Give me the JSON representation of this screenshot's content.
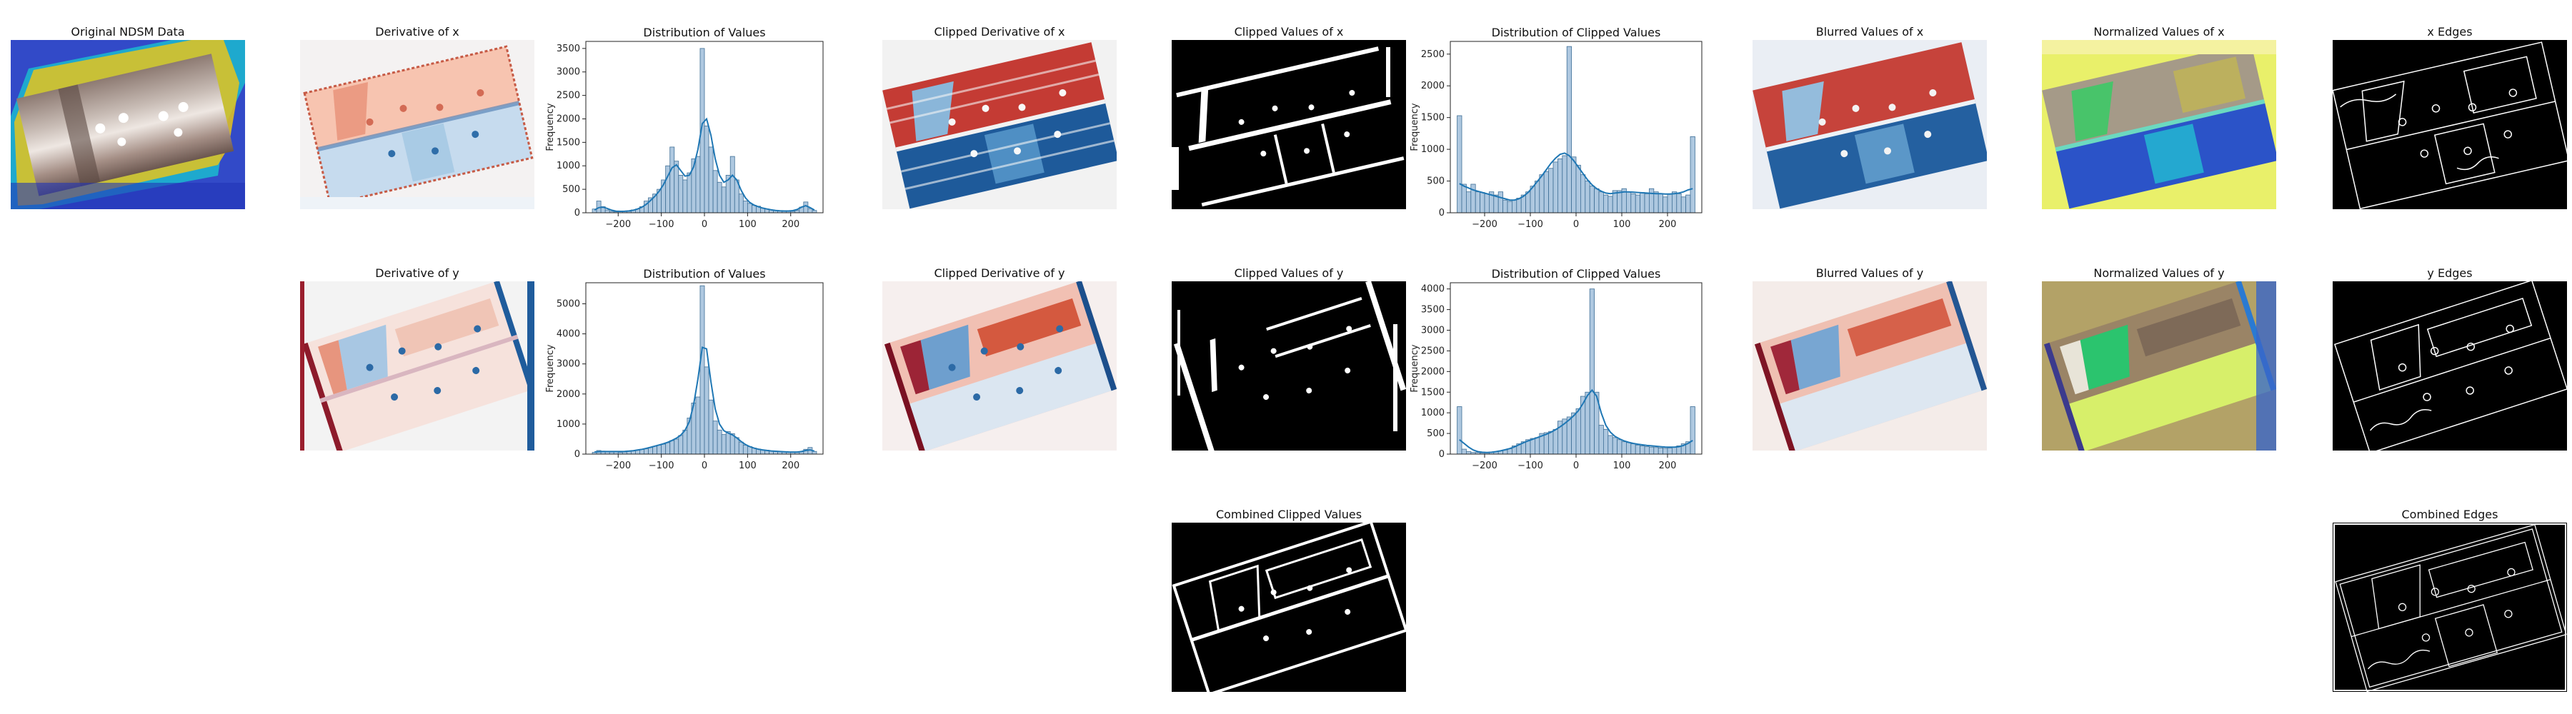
{
  "image_panels": {
    "ndsm": {
      "title": "Original NDSM Data"
    },
    "deriv_x": {
      "title": "Derivative of x"
    },
    "deriv_y": {
      "title": "Derivative of y"
    },
    "clip_deriv_x": {
      "title": "Clipped Derivative of x"
    },
    "clip_deriv_y": {
      "title": "Clipped Derivative of y"
    },
    "clip_vals_x": {
      "title": "Clipped Values  of x"
    },
    "clip_vals_y": {
      "title": "Clipped Values  of y"
    },
    "combined_clip": {
      "title": "Combined Clipped Values"
    },
    "blur_x": {
      "title": "Blurred Values of x"
    },
    "blur_y": {
      "title": "Blurred Values of y"
    },
    "norm_x": {
      "title": "Normalized Values of x"
    },
    "norm_y": {
      "title": "Normalized Values of y"
    },
    "edges_x": {
      "title": "x Edges"
    },
    "edges_y": {
      "title": "y Edges"
    },
    "combined_edges": {
      "title": "Combined Edges"
    }
  },
  "chart_data": [
    {
      "id": "hist1",
      "type": "bar",
      "title": "Distribution of Values",
      "xlabel": "",
      "ylabel": "Frequency",
      "xlim": [
        -275,
        275
      ],
      "ylim": [
        0,
        3650
      ],
      "xticks": [
        -200,
        -100,
        0,
        100,
        200
      ],
      "yticks": [
        0,
        500,
        1000,
        1500,
        2000,
        2500,
        3000,
        3500
      ],
      "bin_centers": [
        -255,
        -245,
        -235,
        -225,
        -215,
        -205,
        -195,
        -185,
        -175,
        -165,
        -155,
        -145,
        -135,
        -125,
        -115,
        -105,
        -95,
        -85,
        -75,
        -65,
        -55,
        -45,
        -35,
        -25,
        -15,
        -5,
        5,
        15,
        25,
        35,
        45,
        55,
        65,
        75,
        85,
        95,
        105,
        115,
        125,
        135,
        145,
        155,
        165,
        175,
        185,
        195,
        205,
        215,
        225,
        235,
        245,
        255
      ],
      "values": [
        80,
        250,
        130,
        60,
        30,
        20,
        30,
        40,
        30,
        60,
        80,
        130,
        250,
        320,
        400,
        500,
        700,
        1000,
        1400,
        1100,
        800,
        700,
        850,
        1150,
        1200,
        3500,
        1850,
        1400,
        900,
        650,
        550,
        800,
        1200,
        700,
        400,
        250,
        200,
        160,
        140,
        100,
        80,
        60,
        50,
        40,
        30,
        30,
        30,
        50,
        120,
        230,
        90,
        50
      ],
      "kde": [
        60,
        110,
        120,
        90,
        55,
        35,
        30,
        32,
        40,
        55,
        80,
        120,
        180,
        260,
        350,
        460,
        600,
        780,
        960,
        1020,
        900,
        780,
        800,
        980,
        1350,
        1900,
        2000,
        1650,
        1150,
        800,
        650,
        700,
        800,
        700,
        480,
        320,
        220,
        165,
        130,
        100,
        80,
        62,
        50,
        42,
        38,
        38,
        45,
        70,
        120,
        150,
        110,
        60
      ]
    },
    {
      "id": "hist2",
      "type": "bar",
      "title": "Distribution of Clipped Values",
      "xlabel": "",
      "ylabel": "Frequency",
      "xlim": [
        -275,
        275
      ],
      "ylim": [
        0,
        2700
      ],
      "xticks": [
        -200,
        -100,
        0,
        100,
        200
      ],
      "yticks": [
        0,
        500,
        1000,
        1500,
        2000,
        2500
      ],
      "bin_centers": [
        -255,
        -245,
        -235,
        -225,
        -215,
        -205,
        -195,
        -185,
        -175,
        -165,
        -155,
        -145,
        -135,
        -125,
        -115,
        -105,
        -95,
        -85,
        -75,
        -65,
        -55,
        -45,
        -35,
        -25,
        -15,
        -5,
        5,
        15,
        25,
        35,
        45,
        55,
        65,
        75,
        85,
        95,
        105,
        115,
        125,
        135,
        145,
        155,
        165,
        175,
        185,
        195,
        205,
        215,
        225,
        235,
        245,
        255
      ],
      "values": [
        1530,
        450,
        330,
        450,
        330,
        320,
        300,
        330,
        280,
        330,
        200,
        180,
        200,
        230,
        280,
        330,
        420,
        500,
        600,
        650,
        700,
        800,
        850,
        900,
        2620,
        880,
        750,
        600,
        500,
        420,
        380,
        330,
        280,
        260,
        350,
        350,
        380,
        330,
        300,
        280,
        320,
        300,
        380,
        330,
        300,
        250,
        300,
        330,
        300,
        250,
        280,
        1200
      ],
      "kde": [
        460,
        420,
        390,
        360,
        340,
        320,
        300,
        280,
        260,
        240,
        220,
        200,
        200,
        220,
        260,
        320,
        400,
        490,
        580,
        680,
        780,
        860,
        920,
        940,
        900,
        820,
        720,
        620,
        520,
        440,
        380,
        340,
        310,
        300,
        310,
        320,
        330,
        330,
        325,
        320,
        315,
        310,
        305,
        300,
        300,
        295,
        295,
        300,
        310,
        330,
        360,
        380
      ]
    },
    {
      "id": "hist3",
      "type": "bar",
      "title": "Distribution of Values",
      "xlabel": "",
      "ylabel": "Frequency",
      "xlim": [
        -275,
        275
      ],
      "ylim": [
        0,
        5700
      ],
      "xticks": [
        -200,
        -100,
        0,
        100,
        200
      ],
      "yticks": [
        0,
        1000,
        2000,
        3000,
        4000,
        5000
      ],
      "bin_centers": [
        -255,
        -245,
        -235,
        -225,
        -215,
        -205,
        -195,
        -185,
        -175,
        -165,
        -155,
        -145,
        -135,
        -125,
        -115,
        -105,
        -95,
        -85,
        -75,
        -65,
        -55,
        -45,
        -35,
        -25,
        -15,
        -5,
        5,
        15,
        25,
        35,
        45,
        55,
        65,
        75,
        85,
        95,
        105,
        115,
        125,
        135,
        145,
        155,
        165,
        175,
        185,
        195,
        205,
        215,
        225,
        235,
        245,
        255
      ],
      "values": [
        60,
        120,
        100,
        80,
        70,
        80,
        60,
        70,
        90,
        110,
        130,
        160,
        180,
        220,
        260,
        300,
        330,
        380,
        450,
        500,
        620,
        800,
        1200,
        1700,
        1900,
        5600,
        2900,
        1800,
        1100,
        800,
        650,
        750,
        680,
        550,
        400,
        300,
        250,
        200,
        170,
        140,
        130,
        110,
        100,
        90,
        80,
        70,
        60,
        60,
        80,
        160,
        220,
        90
      ],
      "kde": [
        70,
        80,
        85,
        85,
        85,
        85,
        85,
        90,
        100,
        115,
        135,
        160,
        190,
        225,
        265,
        305,
        345,
        395,
        455,
        530,
        630,
        790,
        1080,
        1650,
        2500,
        3550,
        3500,
        2400,
        1500,
        1000,
        780,
        700,
        640,
        540,
        420,
        320,
        250,
        200,
        165,
        140,
        120,
        105,
        95,
        85,
        78,
        72,
        68,
        70,
        85,
        120,
        140,
        100
      ]
    },
    {
      "id": "hist4",
      "type": "bar",
      "title": "Distribution of Clipped Values",
      "xlabel": "",
      "ylabel": "Frequency",
      "xlim": [
        -275,
        275
      ],
      "ylim": [
        0,
        4150
      ],
      "xticks": [
        -200,
        -100,
        0,
        100,
        200
      ],
      "yticks": [
        0,
        500,
        1000,
        1500,
        2000,
        2500,
        3000,
        3500,
        4000
      ],
      "bin_centers": [
        -255,
        -245,
        -235,
        -225,
        -215,
        -205,
        -195,
        -185,
        -175,
        -165,
        -155,
        -145,
        -135,
        -125,
        -115,
        -105,
        -95,
        -85,
        -75,
        -65,
        -55,
        -45,
        -35,
        -25,
        -15,
        -5,
        5,
        15,
        25,
        35,
        45,
        55,
        65,
        75,
        85,
        95,
        105,
        115,
        125,
        135,
        145,
        155,
        165,
        175,
        185,
        195,
        205,
        215,
        225,
        235,
        245,
        255
      ],
      "values": [
        1150,
        120,
        60,
        40,
        40,
        30,
        30,
        50,
        60,
        80,
        100,
        130,
        200,
        250,
        300,
        350,
        380,
        400,
        500,
        520,
        550,
        600,
        800,
        850,
        900,
        1000,
        1100,
        1400,
        1500,
        4000,
        1500,
        700,
        600,
        450,
        400,
        350,
        300,
        280,
        250,
        220,
        200,
        180,
        170,
        160,
        150,
        140,
        150,
        170,
        200,
        250,
        300,
        1150
      ],
      "kde": [
        350,
        260,
        170,
        100,
        60,
        45,
        40,
        45,
        60,
        80,
        105,
        135,
        175,
        225,
        275,
        320,
        360,
        400,
        440,
        480,
        530,
        590,
        660,
        740,
        830,
        930,
        1050,
        1220,
        1420,
        1550,
        1400,
        1000,
        700,
        530,
        430,
        370,
        320,
        285,
        260,
        240,
        225,
        210,
        200,
        190,
        180,
        172,
        168,
        170,
        180,
        210,
        260,
        330
      ]
    }
  ],
  "colors": {
    "bar_fill": "#aec8e0",
    "bar_edge": "#3f6f96",
    "kde_line": "#1f77b4",
    "axis": "#222222",
    "ndsm_bg": "#2a3fb8",
    "edge_bg": "#000000",
    "edge_line": "#ffffff"
  }
}
